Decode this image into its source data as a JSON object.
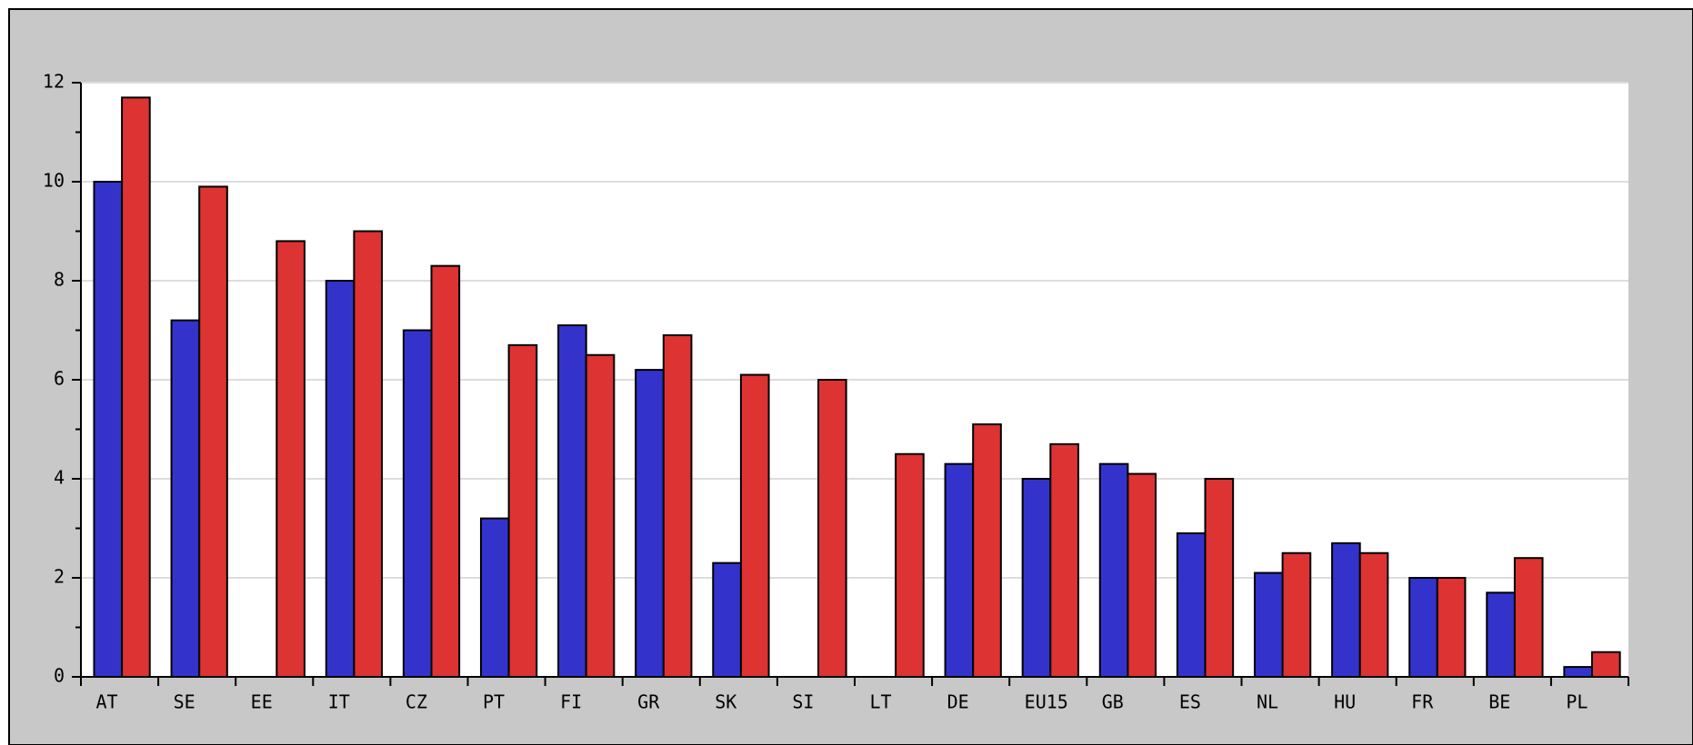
{
  "chart_data": {
    "type": "bar",
    "categories": [
      "AT",
      "SE",
      "EE",
      "IT",
      "CZ",
      "PT",
      "FI",
      "GR",
      "SK",
      "SI",
      "LT",
      "DE",
      "EU15",
      "GB",
      "ES",
      "NL",
      "HU",
      "FR",
      "BE",
      "PL"
    ],
    "series": [
      {
        "color": "#3333cc",
        "values": [
          10,
          7.2,
          null,
          8,
          7,
          3.2,
          7.1,
          6.2,
          2.3,
          null,
          null,
          4.3,
          4,
          4.3,
          2.9,
          2.1,
          2.7,
          2,
          1.7,
          0.2
        ]
      },
      {
        "color": "#dd3333",
        "values": [
          11.7,
          9.9,
          8.8,
          9,
          8.3,
          6.7,
          6.5,
          6.9,
          6.1,
          6,
          4.5,
          5.1,
          4.7,
          4.1,
          4,
          2.5,
          2.5,
          2,
          2.4,
          0.5
        ]
      }
    ],
    "ylim": [
      0,
      12
    ],
    "yticks": [
      0,
      2,
      4,
      6,
      8,
      10,
      12
    ],
    "yminorticks": [
      1,
      3,
      5,
      7,
      9,
      11
    ],
    "grid": true
  }
}
